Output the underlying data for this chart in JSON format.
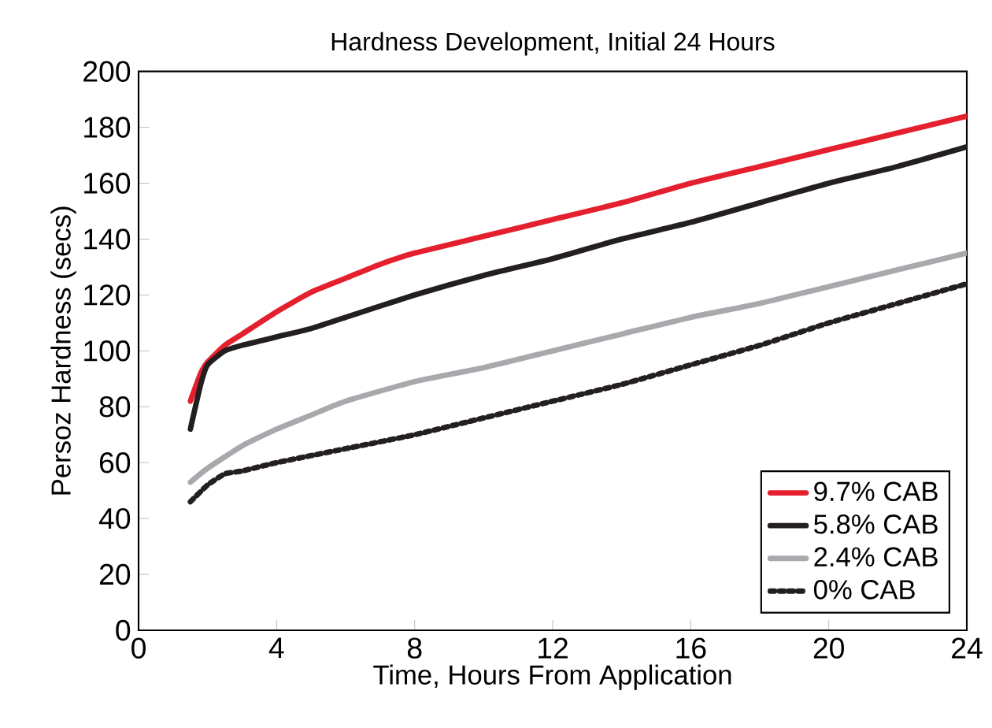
{
  "chart_data": {
    "type": "line",
    "title": "Hardness Development, Initial 24 Hours",
    "xlabel": "Time, Hours From Application",
    "ylabel": "Persoz Hardness (secs)",
    "xlim": [
      0,
      24
    ],
    "ylim": [
      0,
      200
    ],
    "xticks": [
      0,
      4,
      8,
      12,
      16,
      20,
      24
    ],
    "yticks": [
      0,
      20,
      40,
      60,
      80,
      100,
      120,
      140,
      160,
      180,
      200
    ],
    "legend": "bottom right",
    "grid": false,
    "marker": "none",
    "series": [
      {
        "name": "9.7% CAB",
        "color": "#e4202f",
        "line_style": "solid",
        "x": [
          1.5,
          1.8,
          2,
          2.5,
          3,
          4,
          5,
          6,
          7,
          8,
          10,
          12,
          14,
          16,
          18,
          20,
          22,
          24
        ],
        "values": [
          82,
          92,
          96,
          102,
          106,
          114,
          121,
          126,
          131,
          135,
          141,
          147,
          153,
          160,
          166,
          172,
          178,
          184
        ]
      },
      {
        "name": "5.8% CAB",
        "color": "#231f20",
        "line_style": "solid",
        "x": [
          1.5,
          1.8,
          2,
          2.5,
          3,
          4,
          5,
          6,
          8,
          10,
          12,
          14,
          16,
          18,
          20,
          22,
          24
        ],
        "values": [
          72,
          88,
          95,
          100,
          102,
          105,
          108,
          112,
          120,
          127,
          133,
          140,
          146,
          153,
          160,
          166,
          173
        ]
      },
      {
        "name": "2.4% CAB",
        "color": "#a7a9ac",
        "line_style": "solid",
        "x": [
          1.5,
          2,
          3,
          4,
          5,
          6,
          8,
          10,
          12,
          14,
          16,
          18,
          20,
          22,
          24
        ],
        "values": [
          53,
          58,
          66,
          72,
          77,
          82,
          89,
          94,
          100,
          106,
          112,
          117,
          123,
          129,
          135
        ]
      },
      {
        "name": "0% CAB",
        "color": "#231f20",
        "line_style": "dotted",
        "x": [
          1.5,
          2,
          2.5,
          3,
          4,
          6,
          8,
          10,
          12,
          14,
          16,
          18,
          20,
          22,
          24
        ],
        "values": [
          46,
          52,
          56,
          57,
          60,
          65,
          70,
          76,
          82,
          88,
          95,
          102,
          110,
          117,
          124
        ]
      }
    ]
  }
}
